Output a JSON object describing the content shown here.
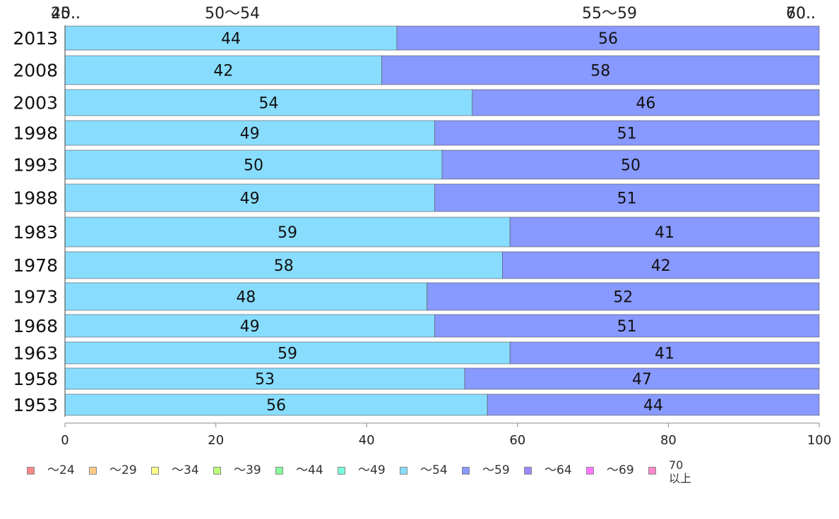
{
  "chart_data": {
    "type": "bar",
    "orientation": "horizontal",
    "stacked": true,
    "categories": [
      "2013",
      "2008",
      "2003",
      "1998",
      "1993",
      "1988",
      "1983",
      "1978",
      "1973",
      "1968",
      "1963",
      "1958",
      "1953"
    ],
    "series": [
      {
        "name": "〜54",
        "color": "#88ddff",
        "values": [
          44,
          42,
          54,
          49,
          50,
          49,
          59,
          58,
          48,
          49,
          59,
          53,
          56
        ]
      },
      {
        "name": "〜59",
        "color": "#8899ff",
        "values": [
          56,
          58,
          46,
          51,
          50,
          51,
          41,
          42,
          52,
          51,
          41,
          47,
          44
        ]
      }
    ],
    "top_labels": [
      "20..",
      "45..",
      "50〜54",
      "55〜59",
      "60..",
      "70.."
    ],
    "x_ticks": [
      0,
      20,
      40,
      60,
      80,
      100
    ],
    "xlim": [
      0,
      100
    ],
    "legend": {
      "placement": "bottom",
      "items": [
        {
          "label": "〜24",
          "color": "#ff8888"
        },
        {
          "label": "〜29",
          "color": "#ffcc88"
        },
        {
          "label": "〜34",
          "color": "#ffff88"
        },
        {
          "label": "〜39",
          "color": "#bbff77"
        },
        {
          "label": "〜44",
          "color": "#88ff99"
        },
        {
          "label": "〜49",
          "color": "#77ffdd"
        },
        {
          "label": "〜54",
          "color": "#88ddff"
        },
        {
          "label": "〜59",
          "color": "#8899ff"
        },
        {
          "label": "〜64",
          "color": "#9988ff"
        },
        {
          "label": "〜69",
          "color": "#ff77ff"
        },
        {
          "label": "70\n以上",
          "color": "#ff88cc"
        }
      ]
    }
  }
}
